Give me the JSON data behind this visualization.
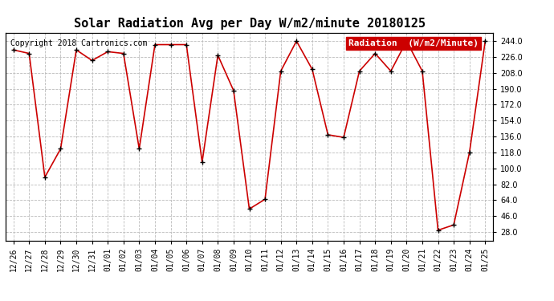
{
  "title": "Solar Radiation Avg per Day W/m2/minute 20180125",
  "copyright": "Copyright 2018 Cartronics.com",
  "legend_label": "Radiation  (W/m2/Minute)",
  "dates": [
    "12/26",
    "12/27",
    "12/28",
    "12/29",
    "12/30",
    "12/31",
    "01/01",
    "01/02",
    "01/03",
    "01/04",
    "01/05",
    "01/06",
    "01/07",
    "01/08",
    "01/09",
    "01/10",
    "01/11",
    "01/12",
    "01/13",
    "01/14",
    "01/15",
    "01/16",
    "01/17",
    "01/18",
    "01/19",
    "01/20",
    "01/21",
    "01/22",
    "01/23",
    "01/24",
    "01/25"
  ],
  "values": [
    234,
    230,
    90,
    122,
    234,
    222,
    232,
    230,
    122,
    240,
    240,
    240,
    107,
    228,
    188,
    54,
    65,
    210,
    244,
    212,
    138,
    135,
    210,
    230,
    210,
    244,
    210,
    30,
    36,
    118,
    244
  ],
  "line_color": "#cc0000",
  "marker_color": "#000000",
  "bg_color": "#ffffff",
  "grid_color": "#bbbbbb",
  "ylim_min": 18,
  "ylim_max": 253,
  "yticks": [
    28.0,
    46.0,
    64.0,
    82.0,
    100.0,
    118.0,
    136.0,
    154.0,
    172.0,
    190.0,
    208.0,
    226.0,
    244.0
  ],
  "legend_bg": "#cc0000",
  "legend_text_color": "#ffffff",
  "title_fontsize": 11,
  "copyright_fontsize": 7,
  "tick_fontsize": 7,
  "legend_fontsize": 8
}
